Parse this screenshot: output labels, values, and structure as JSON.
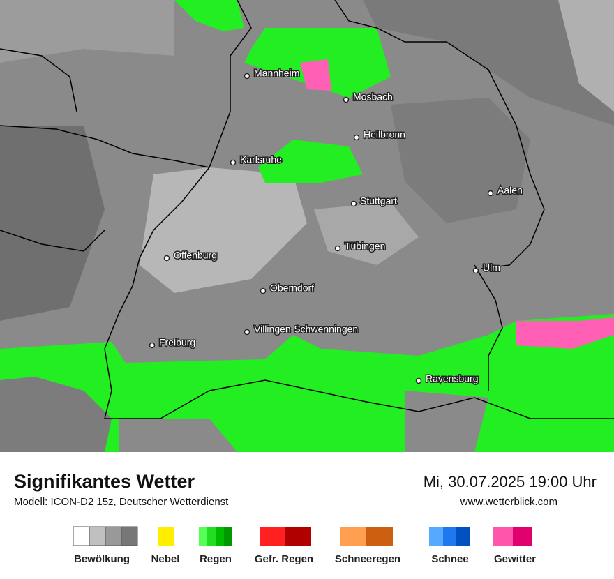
{
  "map": {
    "cities": [
      "Mannheim",
      "Mosbach",
      "Heilbronn",
      "Karlsruhe",
      "Stuttgart",
      "Aalen",
      "Tübingen",
      "Offenburg",
      "Ulm",
      "Oberndorf",
      "Villingen-Schwenningen",
      "Freiburg",
      "Ravensburg"
    ]
  },
  "footer": {
    "title": "Signifikantes Wetter",
    "subtitle": "Modell: ICON-D2 15z, Deutscher Wetterdienst",
    "datetime": "Mi, 30.07.2025 19:00 Uhr",
    "website": "www.wetterblick.com"
  },
  "legend": {
    "items": [
      "Bewölkung",
      "Nebel",
      "Regen",
      "Gefr. Regen",
      "Schneeregen",
      "Schnee",
      "Gewitter"
    ]
  }
}
